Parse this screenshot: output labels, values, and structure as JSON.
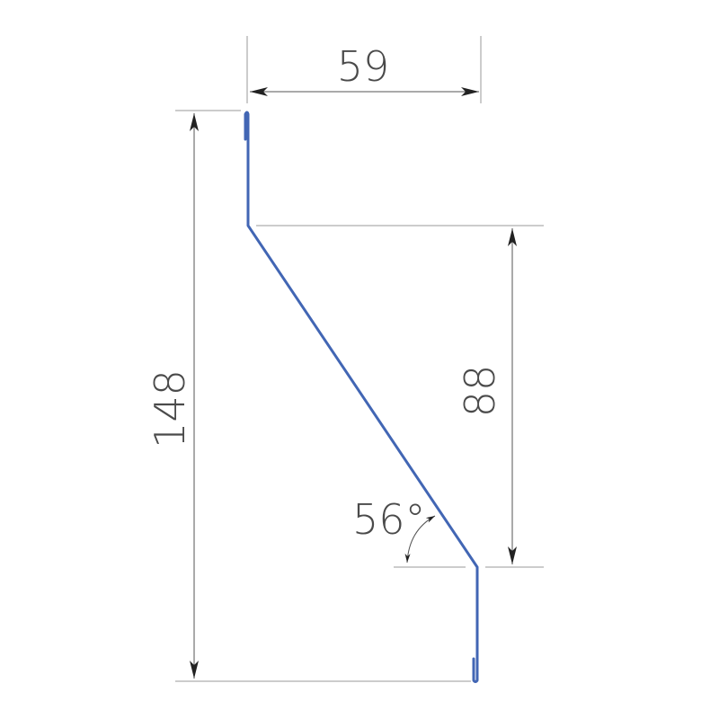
{
  "dimensions": {
    "width": "59",
    "total_height": "148",
    "slope_height": "88",
    "angle": "56°"
  },
  "colors": {
    "profile": "#4266b4",
    "dimension_lines": "#555555",
    "text": "#4a4a4a"
  }
}
